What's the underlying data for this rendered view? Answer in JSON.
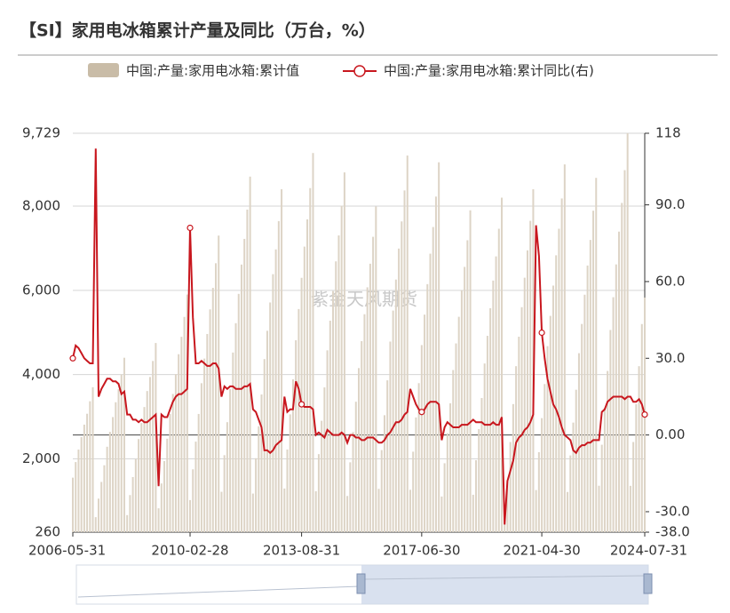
{
  "chart_data": {
    "type": "bar-line",
    "title": "【SI】家用电冰箱累计产量及同比（万台，%）",
    "watermark": "紫金天风期货",
    "categories": [
      "2006-05-31",
      null,
      null,
      null,
      null,
      null,
      null,
      null,
      null,
      null,
      null,
      null,
      null,
      null,
      null,
      null,
      null,
      null,
      null,
      null,
      null,
      null,
      null,
      null,
      null,
      null,
      null,
      null,
      null,
      null,
      null,
      null,
      null,
      null,
      null,
      null,
      null,
      null,
      null,
      null,
      null,
      "2010-02-28",
      null,
      null,
      null,
      null,
      null,
      null,
      null,
      null,
      null,
      null,
      null,
      null,
      null,
      null,
      null,
      null,
      null,
      null,
      null,
      null,
      null,
      null,
      null,
      null,
      null,
      null,
      null,
      null,
      null,
      null,
      null,
      null,
      null,
      null,
      null,
      null,
      null,
      null,
      "2013-08-31",
      null,
      null,
      null,
      null,
      null,
      null,
      null,
      null,
      null,
      null,
      null,
      null,
      null,
      null,
      null,
      null,
      null,
      null,
      null,
      null,
      null,
      null,
      null,
      null,
      null,
      null,
      null,
      null,
      null,
      null,
      null,
      null,
      null,
      null,
      null,
      null,
      null,
      null,
      null,
      null,
      null,
      "2017-06-30",
      null,
      null,
      null,
      null,
      null,
      null,
      null,
      null,
      null,
      null,
      null,
      null,
      null,
      null,
      null,
      null,
      null,
      null,
      null,
      null,
      null,
      null,
      null,
      null,
      null,
      null,
      null,
      null,
      null,
      null,
      null,
      null,
      null,
      null,
      null,
      null,
      null,
      null,
      null,
      null,
      null,
      "2021-04-30",
      null,
      null,
      null,
      null,
      null,
      null,
      null,
      null,
      null,
      null,
      null,
      null,
      null,
      null,
      null,
      null,
      null,
      null,
      null,
      null,
      null,
      null,
      null,
      null,
      null,
      null,
      null,
      null,
      null,
      null,
      null,
      null,
      null,
      null,
      null,
      "2024-07-31"
    ],
    "series": [
      {
        "name": "中国:产量:家用电冰箱:累计值",
        "color": "#ddd4c6",
        "legend_color": "#c9bca7",
        "axis": "y",
        "values": [
          1554,
          1924,
          2220,
          2516,
          2812,
          3071,
          3367,
          3700,
          616,
          1056,
          1452,
          1848,
          2288,
          2640,
          2992,
          3344,
          3652,
          4004,
          4400,
          665,
          1140,
          1568,
          1995,
          2470,
          2850,
          3230,
          3610,
          3943,
          4323,
          4750,
          826,
          1416,
          1947,
          2478,
          3068,
          3540,
          4012,
          4484,
          4897,
          5369,
          5900,
          1022,
          1752,
          2409,
          3066,
          3796,
          4380,
          4964,
          5548,
          6059,
          6643,
          7300,
          1218,
          2088,
          2871,
          3654,
          4524,
          5220,
          5916,
          6612,
          7221,
          7917,
          8700,
          1176,
          2016,
          2772,
          3528,
          4368,
          5040,
          5712,
          6384,
          6972,
          7644,
          8400,
          1296,
          2222,
          3056,
          3889,
          4815,
          5556,
          6297,
          7038,
          7686,
          8427,
          9260,
          1232,
          2112,
          2904,
          3696,
          4576,
          5280,
          5984,
          6688,
          7304,
          8008,
          8800,
          1119,
          1918,
          2637,
          3356,
          4155,
          4794,
          5433,
          6072,
          6632,
          7271,
          7990,
          1288,
          2208,
          3036,
          3864,
          4784,
          5520,
          6256,
          6992,
          7636,
          8372,
          9200,
          1266,
          2170,
          2983,
          3797,
          4701,
          5424,
          6147,
          6870,
          7503,
          8226,
          9040,
          1106,
          1896,
          2607,
          3318,
          4108,
          4740,
          5372,
          6004,
          6557,
          7189,
          7900,
          1148,
          1968,
          2706,
          3444,
          4264,
          4920,
          5576,
          6232,
          6806,
          7462,
          8200,
          840,
          1500,
          2400,
          3300,
          4200,
          4900,
          5600,
          6300,
          6950,
          7650,
          8400,
          1259,
          2158,
          2967,
          3776,
          4675,
          5394,
          6113,
          6832,
          7462,
          8181,
          8990,
          1214,
          2081,
          2861,
          3641,
          4508,
          5202,
          5896,
          6589,
          7196,
          7890,
          8670,
          1362,
          2335,
          3211,
          4086,
          5059,
          5837,
          6616,
          7394,
          8075,
          8853,
          9729,
          1360,
          2400,
          3300,
          4200,
          5200,
          5830
        ]
      },
      {
        "name": "中国:产量:家用电冰箱:累计同比(右)",
        "color": "#c8171e",
        "axis": "y2",
        "values": [
          30,
          35,
          34,
          32,
          30,
          29,
          28,
          28,
          112,
          15,
          18,
          20,
          22,
          22,
          21,
          21,
          20,
          16,
          17,
          8,
          8,
          6,
          6,
          5,
          6,
          5,
          5,
          6,
          7,
          8,
          -20,
          8,
          7,
          7,
          10,
          13,
          15,
          16,
          16,
          17,
          18,
          81,
          46,
          28,
          28,
          29,
          28,
          27,
          27,
          28,
          28,
          26,
          15,
          19,
          18,
          19,
          19,
          18,
          18,
          18,
          19,
          19,
          20,
          10,
          9,
          6,
          3,
          -6,
          -6,
          -7,
          -6,
          -4,
          -3,
          -2,
          15,
          9,
          10,
          10,
          21,
          18,
          12,
          11,
          11,
          11,
          10,
          0,
          1,
          0,
          -1,
          2,
          1,
          0,
          0,
          0,
          1,
          0,
          -3,
          0,
          0,
          -1,
          -1,
          -2,
          -2,
          -1,
          -1,
          -1,
          -2,
          -3,
          -3,
          -2,
          0,
          1,
          3,
          5,
          5,
          6,
          8,
          9,
          18,
          15,
          12,
          10,
          9,
          10,
          12,
          13,
          13,
          13,
          12,
          -2,
          3,
          5,
          4,
          3,
          3,
          3,
          4,
          4,
          4,
          5,
          6,
          5,
          5,
          5,
          4,
          4,
          4,
          5,
          4,
          4,
          7,
          -35,
          -18,
          -14,
          -10,
          -3,
          -1,
          0,
          2,
          3,
          5,
          8,
          82,
          70,
          40,
          30,
          22,
          17,
          12,
          10,
          7,
          3,
          0,
          -1,
          -2,
          -6,
          -7,
          -5,
          -4,
          -4,
          -3,
          -3,
          -2,
          -2,
          -2,
          9,
          10,
          13,
          14,
          15,
          15,
          15,
          15,
          14,
          15,
          15,
          13,
          13,
          14,
          12,
          8
        ]
      }
    ],
    "ylim": [
      260,
      9729
    ],
    "yticks": [
      260,
      {
        "value": 2000,
        "label": "2,000"
      },
      {
        "value": 4000,
        "label": "4,000"
      },
      {
        "value": 6000,
        "label": "6,000"
      },
      {
        "value": 8000,
        "label": "8,000"
      },
      {
        "value": 9729,
        "label": "9,729"
      }
    ],
    "y2lim": [
      -38,
      118
    ],
    "y2ticks": [
      {
        "value": -38,
        "label": "-38.0"
      },
      {
        "value": -30,
        "label": "-30.0"
      },
      {
        "value": 0,
        "label": "0.00"
      },
      {
        "value": 30,
        "label": "30.0"
      },
      {
        "value": 60,
        "label": "60.0"
      },
      {
        "value": 90,
        "label": "90.0"
      },
      118
    ],
    "grid": true
  }
}
